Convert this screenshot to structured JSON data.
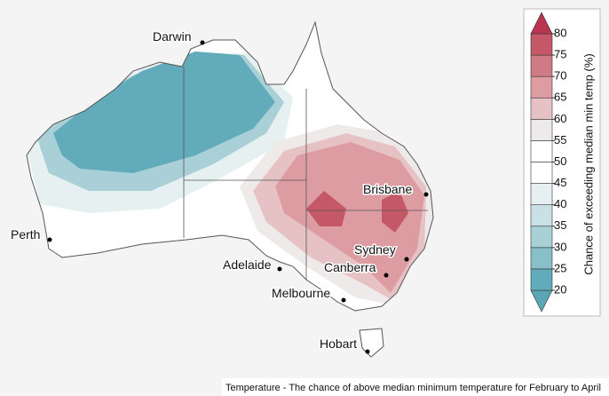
{
  "map": {
    "cities": [
      "Darwin",
      "Perth",
      "Adelaide",
      "Melbourne",
      "Hobart",
      "Canberra",
      "Sydney",
      "Brisbane"
    ],
    "caption": "Temperature - The chance of above median minimum temperature for February to April"
  },
  "colorbar": {
    "label": "Chance of exceeding median min temp (%)",
    "lim": [
      20,
      80
    ],
    "ticks": [
      20,
      25,
      30,
      35,
      40,
      45,
      50,
      55,
      60,
      65,
      70,
      75,
      80
    ],
    "colors": [
      "#5ba6b5",
      "#62abba",
      "#88bfc8",
      "#a9d0d6",
      "#c9e1e4",
      "#e6f0f1",
      "#ffffff",
      "#ffffff",
      "#eeeaea",
      "#e7c2c5",
      "#dc9ca1",
      "#d07a83",
      "#c55867",
      "#b93550"
    ]
  }
}
